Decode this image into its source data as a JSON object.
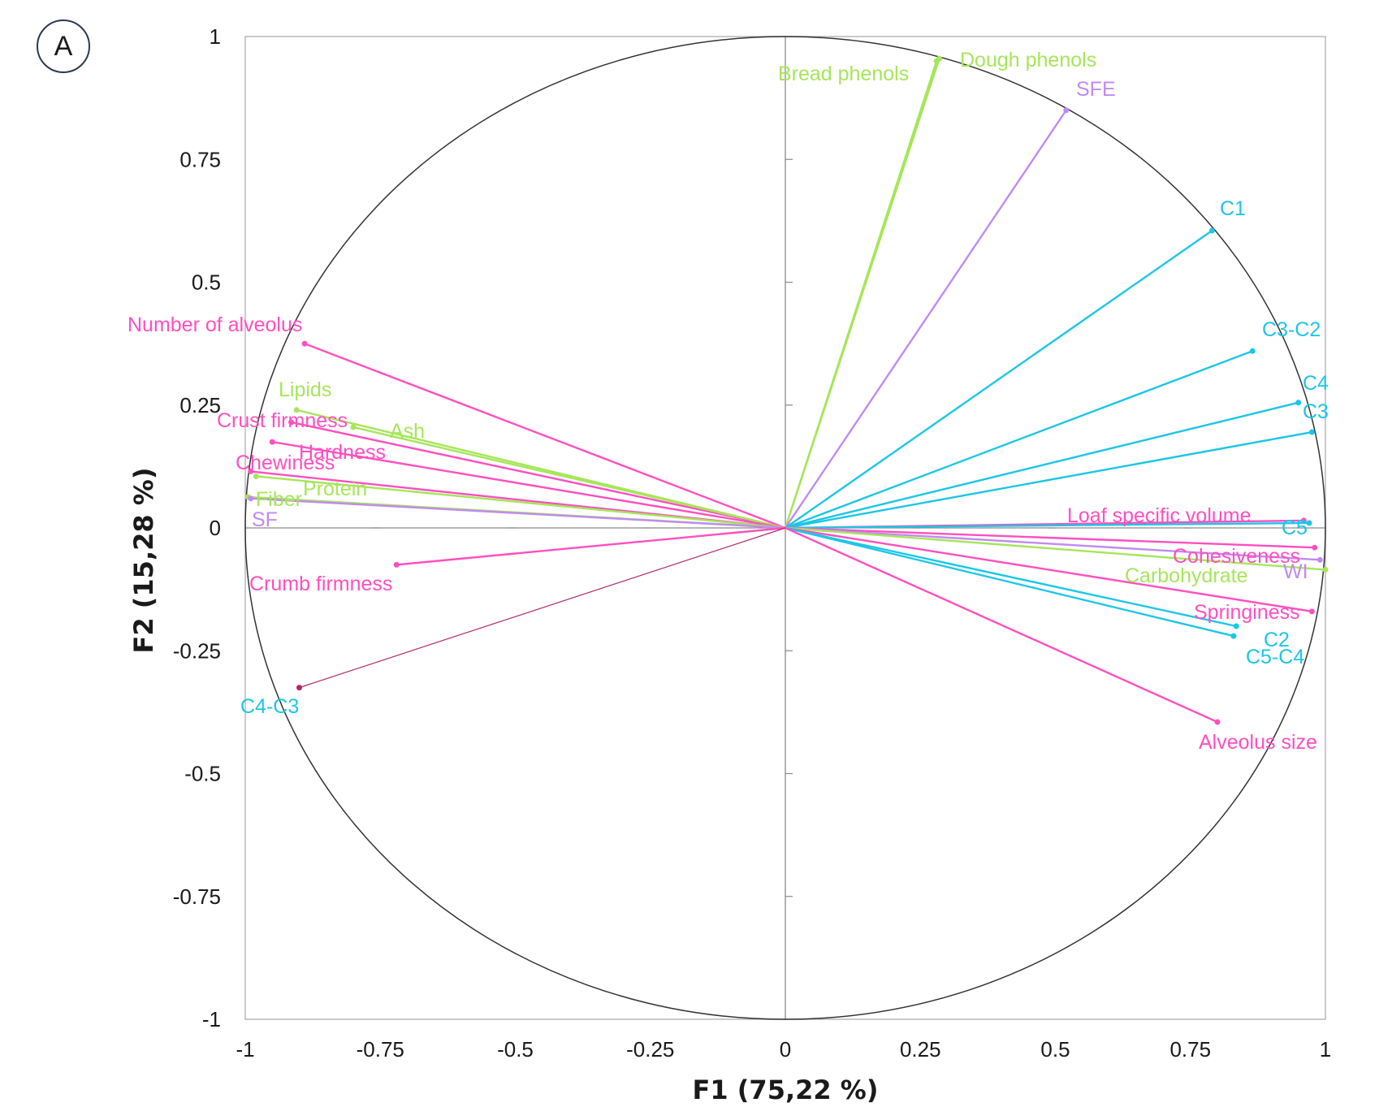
{
  "panel_label": "A",
  "colors": {
    "pink": "#ff4fc1",
    "green": "#a6e65a",
    "cyan": "#1cc6e6",
    "purple": "#c18af2",
    "dark_pink": "#b02a6a",
    "circle": "#333333",
    "frame": "#b8b8b8"
  },
  "chart_data": {
    "type": "scatter",
    "subtype": "pca-correlation-circle",
    "xlabel": "F1 (75,22 %)",
    "ylabel": "F2 (15,28 %)",
    "xlim": [
      -1,
      1
    ],
    "ylim": [
      -1,
      1
    ],
    "x_ticks": [
      "-1",
      "-0.75",
      "-0.5",
      "-0.25",
      "0",
      "0.25",
      "0.5",
      "0.75",
      "1"
    ],
    "y_ticks": [
      "1",
      "0.75",
      "0.5",
      "0.25",
      "0",
      "-0.25",
      "-0.5",
      "-0.75",
      "-1"
    ],
    "unit_circle": true,
    "zero_axes": true,
    "grid": false,
    "vectors": [
      {
        "label": "Bread phenols",
        "x": 0.28,
        "y": 0.95,
        "color": "green"
      },
      {
        "label": "Dough phenols",
        "x": 0.285,
        "y": 0.955,
        "color": "green"
      },
      {
        "label": "SFE",
        "x": 0.52,
        "y": 0.85,
        "color": "purple"
      },
      {
        "label": "C1",
        "x": 0.79,
        "y": 0.605,
        "color": "cyan"
      },
      {
        "label": "C3-C2",
        "x": 0.865,
        "y": 0.36,
        "color": "cyan"
      },
      {
        "label": "C4",
        "x": 0.95,
        "y": 0.255,
        "color": "cyan"
      },
      {
        "label": "C3",
        "x": 0.975,
        "y": 0.195,
        "color": "cyan"
      },
      {
        "label": "Loaf specific volume",
        "x": 0.96,
        "y": 0.015,
        "color": "pink"
      },
      {
        "label": "C5",
        "x": 0.97,
        "y": 0.01,
        "color": "cyan"
      },
      {
        "label": "Cohesiveness",
        "x": 0.98,
        "y": -0.04,
        "color": "pink"
      },
      {
        "label": "WI",
        "x": 0.99,
        "y": -0.065,
        "color": "purple"
      },
      {
        "label": "Carbohydrate",
        "x": 1.0,
        "y": -0.085,
        "color": "green"
      },
      {
        "label": "Springiness",
        "x": 0.975,
        "y": -0.17,
        "color": "pink"
      },
      {
        "label": "C2",
        "x": 0.835,
        "y": -0.2,
        "color": "cyan"
      },
      {
        "label": "C5-C4",
        "x": 0.83,
        "y": -0.22,
        "color": "cyan"
      },
      {
        "label": "Alveolus size",
        "x": 0.8,
        "y": -0.395,
        "color": "pink"
      },
      {
        "label": "Number of alveolus",
        "x": -0.89,
        "y": 0.375,
        "color": "pink"
      },
      {
        "label": "Lipids",
        "x": -0.905,
        "y": 0.24,
        "color": "green"
      },
      {
        "label": "Crust firmness",
        "x": -0.915,
        "y": 0.215,
        "color": "pink"
      },
      {
        "label": "Ash",
        "x": -0.8,
        "y": 0.205,
        "color": "green"
      },
      {
        "label": "Hardness",
        "x": -0.95,
        "y": 0.175,
        "color": "pink"
      },
      {
        "label": "Chewiness",
        "x": -0.99,
        "y": 0.115,
        "color": "pink"
      },
      {
        "label": "Protein",
        "x": -0.98,
        "y": 0.105,
        "color": "green"
      },
      {
        "label": "Fiber",
        "x": -0.995,
        "y": 0.063,
        "color": "green"
      },
      {
        "label": "SF",
        "x": -0.99,
        "y": 0.06,
        "color": "purple"
      },
      {
        "label": "Crumb firmness",
        "x": -0.72,
        "y": -0.075,
        "color": "pink"
      },
      {
        "label": "C4-C3",
        "x": -0.9,
        "y": -0.325,
        "color": "dark_pink"
      }
    ]
  }
}
